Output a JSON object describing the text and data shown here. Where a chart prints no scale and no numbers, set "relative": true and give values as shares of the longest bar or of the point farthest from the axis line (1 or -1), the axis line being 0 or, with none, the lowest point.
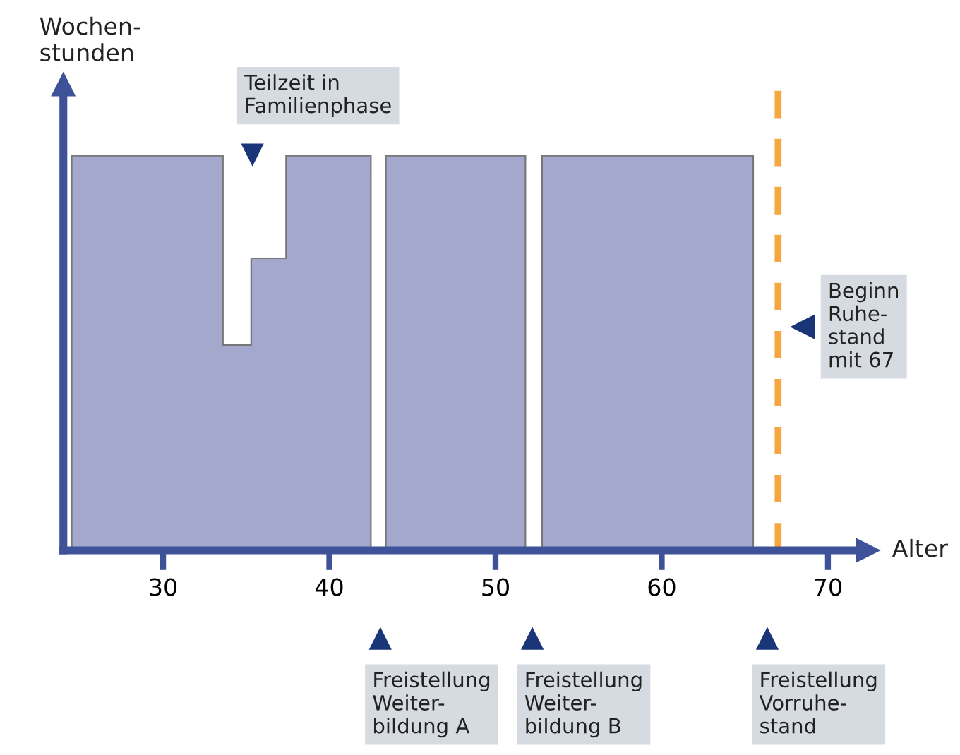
{
  "chart_data": {
    "type": "area",
    "relative": true,
    "xlabel": "Alter",
    "ylabel": "Wochen-\nstunden",
    "x": [
      24.5,
      33.6,
      33.6,
      35.3,
      35.3,
      37.4,
      37.4,
      42.5,
      43.0,
      43.4,
      51.8,
      52.3,
      52.8,
      65.5
    ],
    "series": [
      {
        "color": "#a4a8cc",
        "values": [
          1,
          1,
          0.52,
          0.52,
          0.74,
          0.74,
          1,
          1,
          null,
          1,
          1,
          null,
          1,
          1
        ]
      }
    ],
    "xlim": [
      24,
      72.4
    ],
    "xticks": [
      30,
      40,
      50,
      60,
      70
    ],
    "grid": false,
    "ref_lines": [
      {
        "axis": "x",
        "value": 67,
        "label": "Beginn\nRuhe-\nstand\nmit 67",
        "color": "#f5a742",
        "line_style": "dashed"
      }
    ],
    "annotations": [
      "Teilzeit in\nFamilienphase",
      "Freistellung\nWeiter-\nbildung A",
      "Freistellung\nWeiter-\nbildung B",
      "Freistellung\nVorruhe-\nstand"
    ]
  }
}
